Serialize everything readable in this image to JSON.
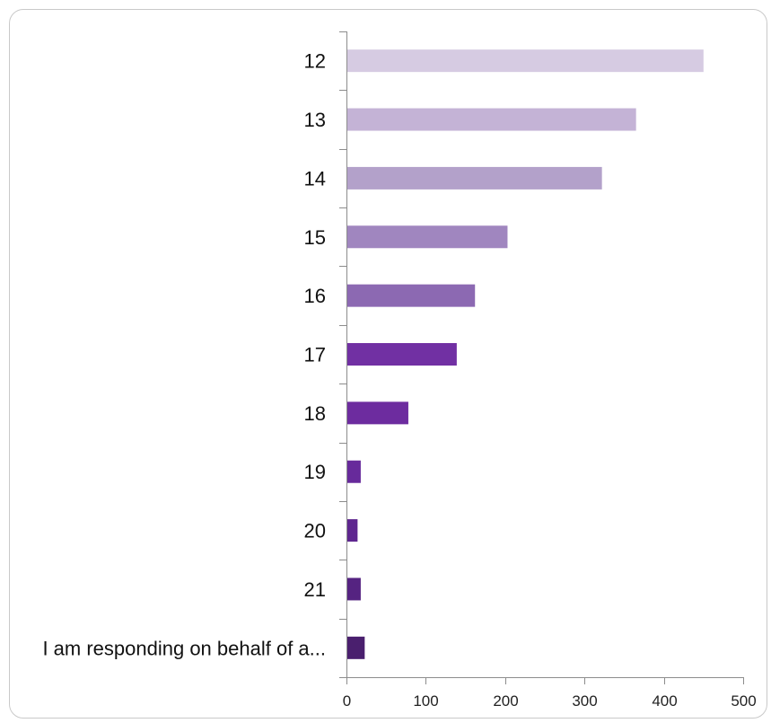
{
  "chart_data": {
    "type": "bar",
    "orientation": "horizontal",
    "categories": [
      "12",
      "13",
      "14",
      "15",
      "16",
      "17",
      "18",
      "19",
      "20",
      "21",
      "I am responding on behalf of a..."
    ],
    "values": [
      450,
      365,
      322,
      203,
      162,
      139,
      78,
      18,
      14,
      18,
      23
    ],
    "colors": [
      "#d6cbe2",
      "#c4b3d6",
      "#b3a1ca",
      "#a086bf",
      "#8c69b2",
      "#7130a3",
      "#6d2c9f",
      "#672a9b",
      "#5e268f",
      "#552381",
      "#4a1f6e"
    ],
    "xlim": [
      0,
      500
    ],
    "xticks": [
      "0",
      "100",
      "200",
      "300",
      "400",
      "500"
    ],
    "grid": false,
    "legend": "none",
    "title": "",
    "xlabel": "",
    "ylabel": ""
  }
}
